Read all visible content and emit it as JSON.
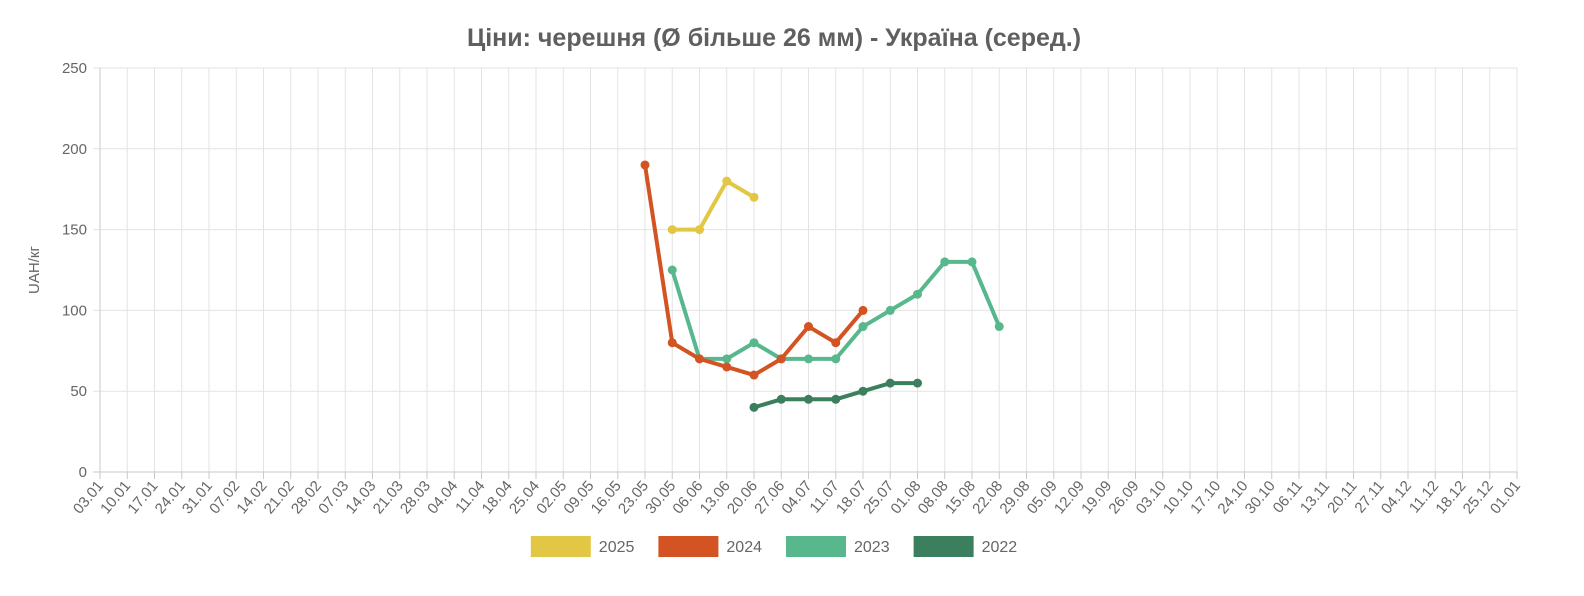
{
  "chart_data": {
    "type": "line",
    "title": "Ціни: черешня (Ø більше 26 мм) - Україна (серед.)",
    "xlabel": "",
    "ylabel": "UAH/кг",
    "ylim": [
      0,
      250
    ],
    "yticks": [
      0,
      50,
      100,
      150,
      200,
      250
    ],
    "grid": true,
    "legend_position": "bottom",
    "categories": [
      "03.01",
      "10.01",
      "17.01",
      "24.01",
      "31.01",
      "07.02",
      "14.02",
      "21.02",
      "28.02",
      "07.03",
      "14.03",
      "21.03",
      "28.03",
      "04.04",
      "11.04",
      "18.04",
      "25.04",
      "02.05",
      "09.05",
      "16.05",
      "23.05",
      "30.05",
      "06.06",
      "13.06",
      "20.06",
      "27.06",
      "04.07",
      "11.07",
      "18.07",
      "25.07",
      "01.08",
      "08.08",
      "15.08",
      "22.08",
      "29.08",
      "05.09",
      "12.09",
      "19.09",
      "26.09",
      "03.10",
      "10.10",
      "17.10",
      "24.10",
      "30.10",
      "06.11",
      "13.11",
      "20.11",
      "27.11",
      "04.12",
      "11.12",
      "18.12",
      "25.12",
      "01.01"
    ],
    "series": [
      {
        "name": "2025",
        "color": "#e2c744",
        "points": [
          [
            "30.05",
            150
          ],
          [
            "06.06",
            150
          ],
          [
            "13.06",
            180
          ],
          [
            "20.06",
            170
          ]
        ]
      },
      {
        "name": "2024",
        "color": "#d35322",
        "points": [
          [
            "23.05",
            190
          ],
          [
            "30.05",
            80
          ],
          [
            "06.06",
            70
          ],
          [
            "13.06",
            65
          ],
          [
            "20.06",
            60
          ],
          [
            "27.06",
            70
          ],
          [
            "04.07",
            90
          ],
          [
            "11.07",
            80
          ],
          [
            "18.07",
            100
          ]
        ]
      },
      {
        "name": "2023",
        "color": "#58b78c",
        "points": [
          [
            "30.05",
            125
          ],
          [
            "06.06",
            70
          ],
          [
            "13.06",
            70
          ],
          [
            "20.06",
            80
          ],
          [
            "27.06",
            70
          ],
          [
            "04.07",
            70
          ],
          [
            "11.07",
            70
          ],
          [
            "18.07",
            90
          ],
          [
            "25.07",
            100
          ],
          [
            "01.08",
            110
          ],
          [
            "08.08",
            130
          ],
          [
            "15.08",
            130
          ],
          [
            "22.08",
            90
          ]
        ]
      },
      {
        "name": "2022",
        "color": "#3b7f5e",
        "points": [
          [
            "20.06",
            40
          ],
          [
            "27.06",
            45
          ],
          [
            "04.07",
            45
          ],
          [
            "11.07",
            45
          ],
          [
            "18.07",
            50
          ],
          [
            "25.07",
            55
          ],
          [
            "01.08",
            55
          ]
        ]
      }
    ]
  }
}
